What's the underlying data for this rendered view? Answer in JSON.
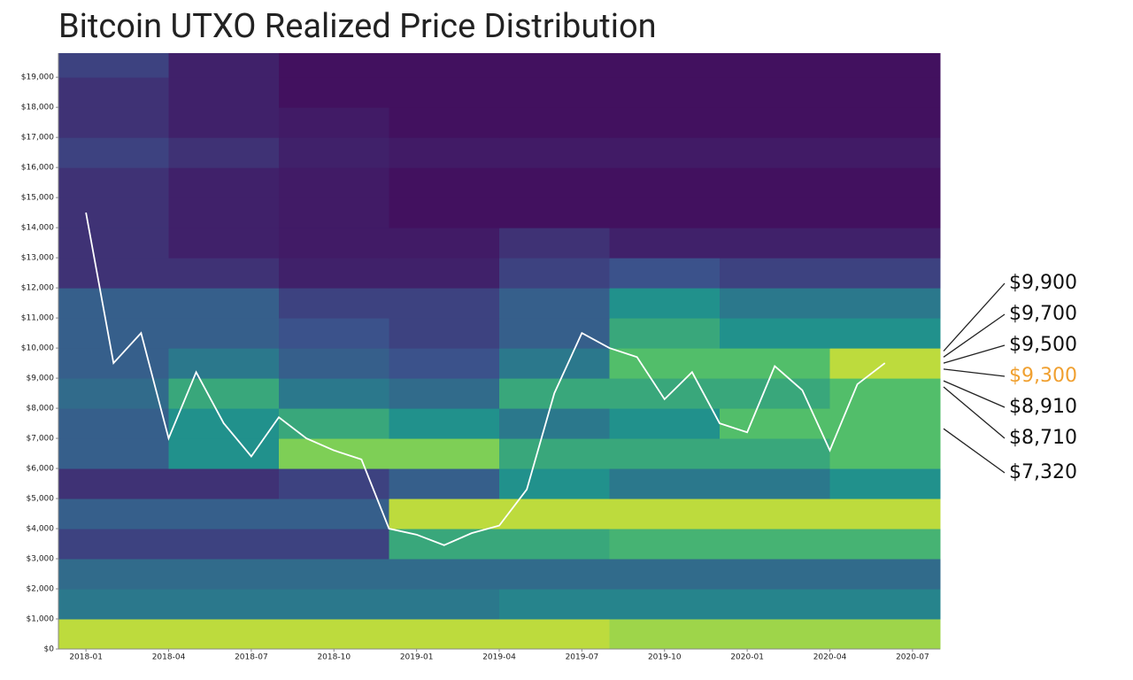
{
  "chart_data": {
    "type": "heatmap",
    "title": "Bitcoin UTXO Realized Price Distribution",
    "colorscale": [
      "#440154",
      "#3b528b",
      "#21918c",
      "#5ec962",
      "#fde725"
    ],
    "heat_x": [
      "2017-12",
      "2018-04",
      "2018-08",
      "2018-12",
      "2019-04",
      "2019-08",
      "2019-12",
      "2020-04",
      "2020-08"
    ],
    "heat_y": [
      0,
      1000,
      2000,
      3000,
      4000,
      5000,
      6000,
      7000,
      8000,
      9000,
      10000,
      11000,
      12000,
      13000,
      14000,
      15000,
      16000,
      17000,
      18000,
      19000,
      20000
    ],
    "z": [
      [
        0.9,
        0.9,
        0.9,
        0.9,
        0.9,
        0.85,
        0.85,
        0.85
      ],
      [
        0.4,
        0.4,
        0.4,
        0.4,
        0.45,
        0.45,
        0.45,
        0.45
      ],
      [
        0.35,
        0.35,
        0.35,
        0.35,
        0.35,
        0.35,
        0.35,
        0.35
      ],
      [
        0.2,
        0.2,
        0.2,
        0.6,
        0.6,
        0.65,
        0.65,
        0.65
      ],
      [
        0.3,
        0.3,
        0.3,
        0.9,
        0.9,
        0.9,
        0.9,
        0.9
      ],
      [
        0.15,
        0.15,
        0.2,
        0.3,
        0.5,
        0.4,
        0.4,
        0.5
      ],
      [
        0.3,
        0.5,
        0.8,
        0.8,
        0.6,
        0.6,
        0.6,
        0.7
      ],
      [
        0.3,
        0.5,
        0.6,
        0.5,
        0.4,
        0.5,
        0.7,
        0.7
      ],
      [
        0.35,
        0.6,
        0.4,
        0.35,
        0.6,
        0.6,
        0.6,
        0.7
      ],
      [
        0.3,
        0.4,
        0.3,
        0.25,
        0.4,
        0.7,
        0.7,
        0.9
      ],
      [
        0.3,
        0.3,
        0.25,
        0.2,
        0.3,
        0.6,
        0.5,
        0.5
      ],
      [
        0.3,
        0.3,
        0.2,
        0.2,
        0.3,
        0.5,
        0.4,
        0.4
      ],
      [
        0.15,
        0.15,
        0.1,
        0.1,
        0.2,
        0.25,
        0.2,
        0.2
      ],
      [
        0.15,
        0.1,
        0.08,
        0.08,
        0.15,
        0.1,
        0.1,
        0.1
      ],
      [
        0.15,
        0.1,
        0.08,
        0.05,
        0.05,
        0.05,
        0.05,
        0.05
      ],
      [
        0.15,
        0.1,
        0.08,
        0.05,
        0.05,
        0.05,
        0.05,
        0.05
      ],
      [
        0.2,
        0.15,
        0.1,
        0.08,
        0.08,
        0.08,
        0.08,
        0.08
      ],
      [
        0.15,
        0.1,
        0.08,
        0.05,
        0.05,
        0.05,
        0.05,
        0.05
      ],
      [
        0.15,
        0.1,
        0.05,
        0.05,
        0.05,
        0.05,
        0.05,
        0.05
      ],
      [
        0.2,
        0.1,
        0.05,
        0.05,
        0.05,
        0.05,
        0.05,
        0.05
      ]
    ],
    "line": {
      "color": "#ffffff",
      "x": [
        "2018-01",
        "2018-02",
        "2018-03",
        "2018-04",
        "2018-05",
        "2018-06",
        "2018-07",
        "2018-08",
        "2018-09",
        "2018-10",
        "2018-11",
        "2018-12",
        "2019-01",
        "2019-02",
        "2019-03",
        "2019-04",
        "2019-05",
        "2019-06",
        "2019-07",
        "2019-08",
        "2019-09",
        "2019-10",
        "2019-11",
        "2019-12",
        "2020-01",
        "2020-02",
        "2020-03",
        "2020-04",
        "2020-05",
        "2020-06"
      ],
      "values": [
        14500,
        9500,
        10500,
        7000,
        9200,
        7500,
        6400,
        7700,
        7000,
        6600,
        6300,
        4000,
        3800,
        3450,
        3850,
        4100,
        5300,
        8500,
        10500,
        10000,
        9700,
        8300,
        9200,
        7500,
        7200,
        9400,
        8600,
        6600,
        8800,
        9500
      ]
    },
    "xlim": [
      "2017-12",
      "2020-08"
    ],
    "xticks": [
      "2018-01",
      "2018-04",
      "2018-07",
      "2018-10",
      "2019-01",
      "2019-04",
      "2019-07",
      "2019-10",
      "2020-01",
      "2020-04",
      "2020-07"
    ],
    "ylim": [
      0,
      19800
    ],
    "yticks": [
      {
        "value": 0,
        "label": "$0"
      },
      {
        "value": 1000,
        "label": "$1,000"
      },
      {
        "value": 2000,
        "label": "$2,000"
      },
      {
        "value": 3000,
        "label": "$3,000"
      },
      {
        "value": 4000,
        "label": "$4,000"
      },
      {
        "value": 5000,
        "label": "$5,000"
      },
      {
        "value": 6000,
        "label": "$6,000"
      },
      {
        "value": 7000,
        "label": "$7,000"
      },
      {
        "value": 8000,
        "label": "$8,000"
      },
      {
        "value": 9000,
        "label": "$9,000"
      },
      {
        "value": 10000,
        "label": "$10,000"
      },
      {
        "value": 11000,
        "label": "$11,000"
      },
      {
        "value": 12000,
        "label": "$12,000"
      },
      {
        "value": 13000,
        "label": "$13,000"
      },
      {
        "value": 14000,
        "label": "$14,000"
      },
      {
        "value": 15000,
        "label": "$15,000"
      },
      {
        "value": 16000,
        "label": "$16,000"
      },
      {
        "value": 17000,
        "label": "$17,000"
      },
      {
        "value": 18000,
        "label": "$18,000"
      },
      {
        "value": 19000,
        "label": "$19,000"
      }
    ],
    "annotations": [
      {
        "value": 9900,
        "label": "$9,900",
        "color": "#111111"
      },
      {
        "value": 9700,
        "label": "$9,700",
        "color": "#111111"
      },
      {
        "value": 9500,
        "label": "$9,500",
        "color": "#111111"
      },
      {
        "value": 9300,
        "label": "$9,300",
        "color": "#f0a030"
      },
      {
        "value": 8910,
        "label": "$8,910",
        "color": "#111111"
      },
      {
        "value": 8710,
        "label": "$8,710",
        "color": "#111111"
      },
      {
        "value": 7320,
        "label": "$7,320",
        "color": "#111111"
      }
    ]
  }
}
